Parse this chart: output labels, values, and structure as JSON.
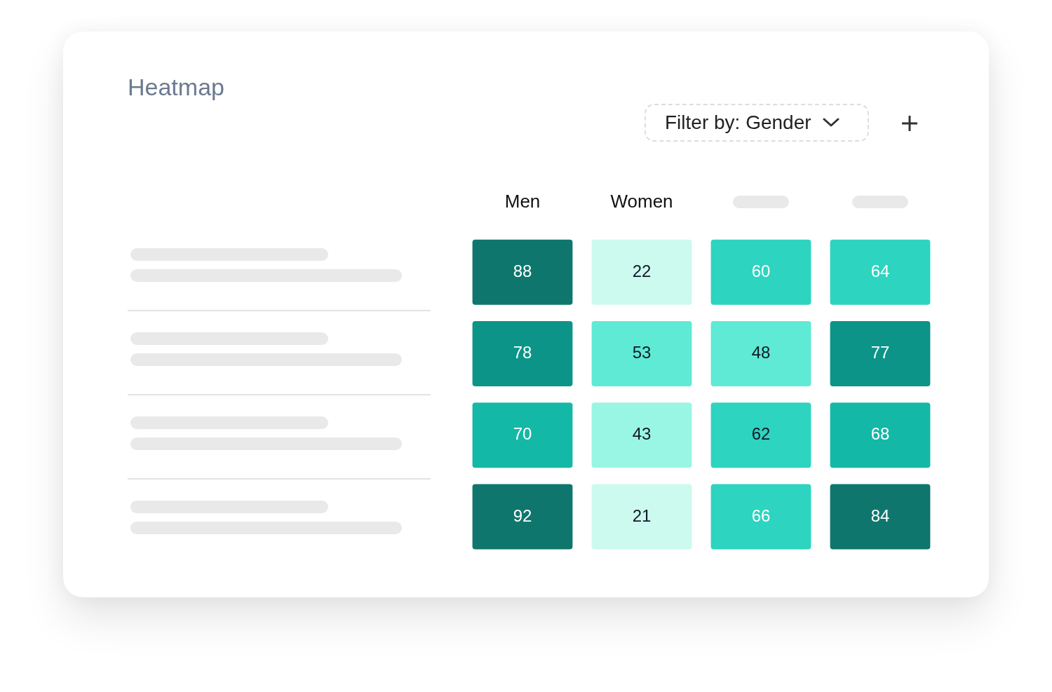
{
  "chart_data": {
    "type": "heatmap",
    "title": "Heatmap",
    "annotations": [
      "Filter by: Gender"
    ],
    "categories": [
      "Men",
      "Women",
      null,
      null
    ],
    "y_categories": [
      null,
      null,
      null,
      null
    ],
    "cells": [
      [
        88,
        22,
        60,
        64
      ],
      [
        78,
        53,
        48,
        77
      ],
      [
        70,
        43,
        62,
        68
      ],
      [
        92,
        21,
        66,
        84
      ]
    ],
    "data_labels": true
  }
}
